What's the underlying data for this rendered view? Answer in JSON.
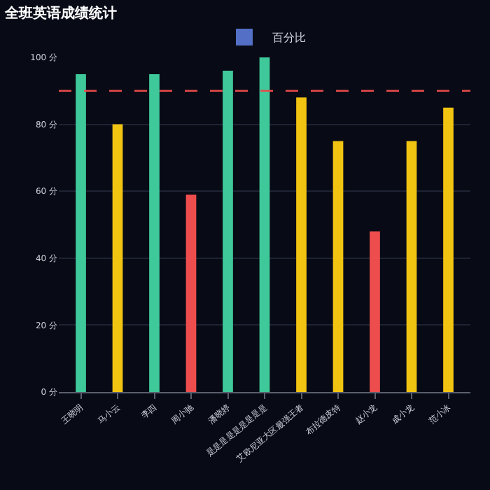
{
  "chart_data": {
    "type": "bar",
    "title": "全班英语成绩统计",
    "categories": [
      "王晓明",
      "马小云",
      "李四",
      "周小驰",
      "潘晓婷",
      "是是是是是是是是是",
      "艾欧尼亚大区最强王者",
      "布拉德皮特",
      "赵小龙",
      "成小龙",
      "范小冰"
    ],
    "series": [
      {
        "name": "百分比",
        "color": "#5470c6",
        "values": [
          95,
          80,
          95,
          59,
          96,
          100,
          88,
          75,
          48,
          75,
          85
        ],
        "colors": [
          "#3fc99a",
          "#f2c412",
          "#3fc99a",
          "#ee4d4d",
          "#3fc99a",
          "#3fc99a",
          "#f2c412",
          "#f2c412",
          "#ee4d4d",
          "#f2c412",
          "#f2c412"
        ]
      }
    ],
    "ylim": [
      0,
      100
    ],
    "yticks": [
      {
        "value": 0,
        "label": "0 分"
      },
      {
        "value": 20,
        "label": "20 分"
      },
      {
        "value": 40,
        "label": "40 分"
      },
      {
        "value": 60,
        "label": "60 分"
      },
      {
        "value": 80,
        "label": "80 分"
      },
      {
        "value": 100,
        "label": "100 分"
      }
    ],
    "grid": "y",
    "legend": "top",
    "ref_lines": [
      {
        "axis": "y",
        "value": 90,
        "color": "#e84b4b",
        "line_style": "dashed"
      }
    ]
  }
}
